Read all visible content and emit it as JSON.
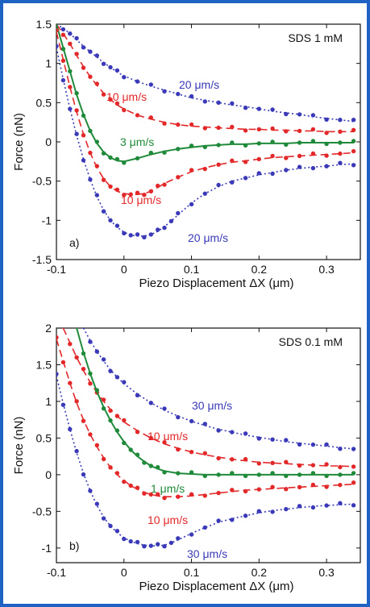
{
  "colors": {
    "frame": "#1e63c4",
    "blue": "#3a3ab8",
    "red": "#e3282a",
    "green": "#1f8a3a"
  },
  "chart_data": [
    {
      "type": "scatter",
      "panel_label": "a)",
      "title": "SDS 1 mM",
      "xlabel": "Piezo Displacement ΔX (μm)",
      "ylabel": "Force (nN)",
      "xlim": [
        -0.1,
        0.35
      ],
      "ylim": [
        -1.5,
        1.5
      ],
      "xticks": [
        -0.1,
        0,
        0.1,
        0.2,
        0.3
      ],
      "yticks": [
        -1.5,
        -1,
        -0.5,
        0,
        0.5,
        1,
        1.5
      ],
      "grid": false,
      "annotations": [
        "20 μm/s",
        "10 μm/s",
        "3 μm/s",
        "10 μm/s",
        "20 μm/s"
      ],
      "series": [
        {
          "label": "20 μm/s",
          "color": "blue",
          "fit": "dotted",
          "x": [
            -0.1,
            -0.09,
            -0.08,
            -0.07,
            -0.06,
            -0.05,
            -0.04,
            -0.03,
            -0.02,
            -0.01,
            0,
            0.02,
            0.04,
            0.06,
            0.08,
            0.1,
            0.12,
            0.14,
            0.16,
            0.18,
            0.2,
            0.22,
            0.24,
            0.26,
            0.28,
            0.3,
            0.32,
            0.34
          ],
          "y": [
            1.5,
            1.45,
            1.38,
            1.3,
            1.22,
            1.15,
            1.08,
            1.01,
            0.95,
            0.89,
            0.84,
            0.77,
            0.71,
            0.66,
            0.61,
            0.56,
            0.53,
            0.5,
            0.47,
            0.45,
            0.42,
            0.39,
            0.37,
            0.35,
            0.32,
            0.3,
            0.28,
            0.26
          ]
        },
        {
          "label": "10 μm/s",
          "color": "red",
          "fit": "dashed",
          "x": [
            -0.1,
            -0.09,
            -0.08,
            -0.07,
            -0.06,
            -0.05,
            -0.04,
            -0.03,
            -0.02,
            -0.01,
            0,
            0.02,
            0.04,
            0.06,
            0.08,
            0.1,
            0.12,
            0.14,
            0.16,
            0.18,
            0.2,
            0.22,
            0.24,
            0.26,
            0.28,
            0.3,
            0.32,
            0.34
          ],
          "y": [
            1.5,
            1.38,
            1.25,
            1.1,
            0.96,
            0.83,
            0.72,
            0.62,
            0.54,
            0.47,
            0.42,
            0.34,
            0.29,
            0.25,
            0.22,
            0.2,
            0.19,
            0.18,
            0.17,
            0.16,
            0.16,
            0.15,
            0.15,
            0.14,
            0.14,
            0.13,
            0.13,
            0.13
          ]
        },
        {
          "label": "3 μm/s",
          "color": "green",
          "fit": "solid",
          "x": [
            -0.1,
            -0.09,
            -0.08,
            -0.07,
            -0.06,
            -0.05,
            -0.04,
            -0.03,
            -0.02,
            -0.01,
            0,
            0.02,
            0.04,
            0.06,
            0.08,
            0.1,
            0.12,
            0.14,
            0.16,
            0.18,
            0.2,
            0.22,
            0.24,
            0.26,
            0.28,
            0.3,
            0.32,
            0.34
          ],
          "y": [
            1.5,
            1.2,
            0.9,
            0.6,
            0.35,
            0.14,
            -0.02,
            -0.13,
            -0.2,
            -0.24,
            -0.25,
            -0.21,
            -0.16,
            -0.12,
            -0.09,
            -0.07,
            -0.05,
            -0.04,
            -0.03,
            -0.03,
            -0.02,
            -0.02,
            -0.02,
            -0.01,
            -0.01,
            -0.01,
            -0.01,
            -0.01
          ]
        },
        {
          "label": "10 μm/s",
          "color": "red",
          "fit": "dashed",
          "x": [
            -0.1,
            -0.09,
            -0.08,
            -0.07,
            -0.06,
            -0.05,
            -0.04,
            -0.03,
            -0.02,
            -0.01,
            0,
            0.01,
            0.02,
            0.03,
            0.04,
            0.05,
            0.06,
            0.08,
            0.1,
            0.12,
            0.14,
            0.16,
            0.18,
            0.2,
            0.22,
            0.24,
            0.26,
            0.28,
            0.3,
            0.32,
            0.34
          ],
          "y": [
            1.4,
            1.05,
            0.7,
            0.38,
            0.1,
            -0.14,
            -0.33,
            -0.47,
            -0.57,
            -0.63,
            -0.66,
            -0.67,
            -0.67,
            -0.66,
            -0.63,
            -0.58,
            -0.53,
            -0.45,
            -0.38,
            -0.33,
            -0.29,
            -0.26,
            -0.24,
            -0.22,
            -0.2,
            -0.19,
            -0.18,
            -0.17,
            -0.16,
            -0.15,
            -0.14
          ]
        },
        {
          "label": "20 μm/s",
          "color": "blue",
          "fit": "dotted",
          "x": [
            -0.1,
            -0.09,
            -0.08,
            -0.07,
            -0.06,
            -0.05,
            -0.04,
            -0.03,
            -0.02,
            -0.01,
            0,
            0.01,
            0.02,
            0.03,
            0.04,
            0.05,
            0.06,
            0.07,
            0.08,
            0.1,
            0.12,
            0.14,
            0.16,
            0.18,
            0.2,
            0.22,
            0.24,
            0.26,
            0.28,
            0.3,
            0.32,
            0.34
          ],
          "y": [
            1.2,
            0.8,
            0.42,
            0.08,
            -0.22,
            -0.48,
            -0.7,
            -0.87,
            -1.0,
            -1.09,
            -1.15,
            -1.19,
            -1.2,
            -1.2,
            -1.18,
            -1.14,
            -1.08,
            -1.01,
            -0.93,
            -0.78,
            -0.66,
            -0.57,
            -0.5,
            -0.46,
            -0.42,
            -0.39,
            -0.36,
            -0.34,
            -0.32,
            -0.31,
            -0.29,
            -0.28
          ]
        }
      ]
    },
    {
      "type": "scatter",
      "panel_label": "b)",
      "title": "SDS 0.1 mM",
      "xlabel": "Piezo Displacement ΔX (μm)",
      "ylabel": "Force (nN)",
      "xlim": [
        -0.1,
        0.35
      ],
      "ylim": [
        -1.2,
        2.0
      ],
      "xticks": [
        -0.1,
        0,
        0.1,
        0.2,
        0.3
      ],
      "yticks": [
        -1,
        -0.5,
        0,
        0.5,
        1,
        1.5,
        2
      ],
      "grid": false,
      "annotations": [
        "30 μm/s",
        "10 μm/s",
        "1 μm/s",
        "10 μm/s",
        "30 μm/s"
      ],
      "series": [
        {
          "label": "30 μm/s",
          "color": "blue",
          "fit": "dotted",
          "x": [
            -0.06,
            -0.05,
            -0.04,
            -0.03,
            -0.02,
            -0.01,
            0,
            0.02,
            0.04,
            0.06,
            0.08,
            0.1,
            0.12,
            0.14,
            0.16,
            0.18,
            0.2,
            0.22,
            0.24,
            0.26,
            0.28,
            0.3,
            0.32,
            0.34
          ],
          "y": [
            2.0,
            1.83,
            1.68,
            1.55,
            1.43,
            1.33,
            1.24,
            1.1,
            0.98,
            0.88,
            0.8,
            0.73,
            0.67,
            0.62,
            0.58,
            0.54,
            0.51,
            0.48,
            0.45,
            0.43,
            0.41,
            0.39,
            0.37,
            0.35
          ]
        },
        {
          "label": "10 μm/s",
          "color": "red",
          "fit": "dashed",
          "x": [
            -0.09,
            -0.08,
            -0.07,
            -0.06,
            -0.05,
            -0.04,
            -0.03,
            -0.02,
            -0.01,
            0,
            0.02,
            0.04,
            0.06,
            0.08,
            0.1,
            0.12,
            0.14,
            0.16,
            0.18,
            0.2,
            0.22,
            0.24,
            0.26,
            0.28,
            0.3,
            0.32,
            0.34
          ],
          "y": [
            2.0,
            1.8,
            1.6,
            1.42,
            1.26,
            1.12,
            1.0,
            0.89,
            0.8,
            0.72,
            0.6,
            0.5,
            0.42,
            0.36,
            0.31,
            0.27,
            0.24,
            0.21,
            0.19,
            0.17,
            0.16,
            0.15,
            0.14,
            0.13,
            0.12,
            0.12,
            0.11
          ]
        },
        {
          "label": "1 μm/s",
          "color": "green",
          "fit": "solid",
          "x": [
            -0.07,
            -0.06,
            -0.05,
            -0.04,
            -0.03,
            -0.02,
            -0.01,
            0,
            0.01,
            0.02,
            0.03,
            0.04,
            0.05,
            0.06,
            0.08,
            0.1,
            0.12,
            0.14,
            0.16,
            0.18,
            0.2,
            0.22,
            0.24,
            0.26,
            0.28,
            0.3,
            0.32,
            0.34
          ],
          "y": [
            2.0,
            1.67,
            1.38,
            1.13,
            0.92,
            0.74,
            0.58,
            0.45,
            0.34,
            0.25,
            0.18,
            0.12,
            0.08,
            0.05,
            0.02,
            0.01,
            0.0,
            0.0,
            0.0,
            0.0,
            0.0,
            0.0,
            0.0,
            0.0,
            0.0,
            0.0,
            0.0,
            0.0
          ]
        },
        {
          "label": "10 μm/s",
          "color": "red",
          "fit": "dashed",
          "x": [
            -0.1,
            -0.09,
            -0.08,
            -0.07,
            -0.06,
            -0.05,
            -0.04,
            -0.03,
            -0.02,
            -0.01,
            0,
            0.01,
            0.02,
            0.03,
            0.04,
            0.05,
            0.06,
            0.08,
            0.1,
            0.12,
            0.14,
            0.16,
            0.18,
            0.2,
            0.22,
            0.24,
            0.26,
            0.28,
            0.3,
            0.32,
            0.34
          ],
          "y": [
            1.85,
            1.55,
            1.25,
            0.98,
            0.75,
            0.55,
            0.38,
            0.23,
            0.1,
            0.0,
            -0.08,
            -0.15,
            -0.2,
            -0.24,
            -0.27,
            -0.29,
            -0.3,
            -0.3,
            -0.29,
            -0.27,
            -0.25,
            -0.23,
            -0.21,
            -0.2,
            -0.19,
            -0.18,
            -0.17,
            -0.16,
            -0.15,
            -0.14,
            -0.13
          ]
        },
        {
          "label": "30 μm/s",
          "color": "blue",
          "fit": "dotted",
          "x": [
            -0.1,
            -0.09,
            -0.08,
            -0.07,
            -0.06,
            -0.05,
            -0.04,
            -0.03,
            -0.02,
            -0.01,
            0,
            0.01,
            0.02,
            0.03,
            0.04,
            0.05,
            0.06,
            0.07,
            0.08,
            0.1,
            0.12,
            0.14,
            0.16,
            0.18,
            0.2,
            0.22,
            0.24,
            0.26,
            0.28,
            0.3,
            0.32,
            0.34
          ],
          "y": [
            1.35,
            0.97,
            0.62,
            0.3,
            0.02,
            -0.22,
            -0.42,
            -0.58,
            -0.7,
            -0.79,
            -0.86,
            -0.91,
            -0.94,
            -0.96,
            -0.97,
            -0.97,
            -0.96,
            -0.93,
            -0.89,
            -0.8,
            -0.72,
            -0.65,
            -0.6,
            -0.56,
            -0.52,
            -0.49,
            -0.47,
            -0.45,
            -0.43,
            -0.42,
            -0.41,
            -0.4
          ]
        }
      ]
    }
  ]
}
